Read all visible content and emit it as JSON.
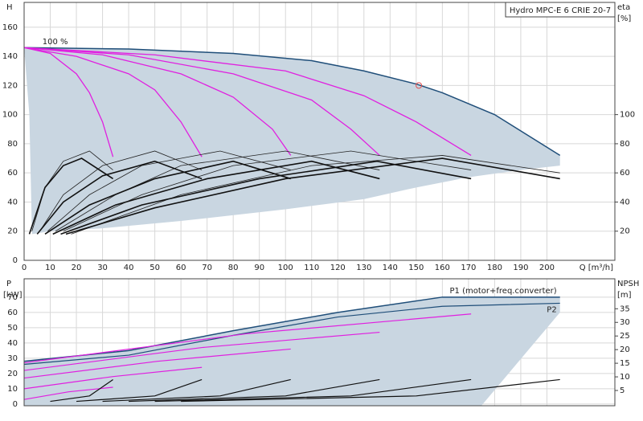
{
  "chart_data": [
    {
      "type": "line",
      "y_label": "H",
      "x_label": "Q [m³/h]",
      "y2_label": "eta",
      "y2_unit": "[%]",
      "model": "Hydro MPC-E 6 CRIE 20-7",
      "annotation": {
        "text": "100 %",
        "x": 7,
        "y": 150
      },
      "xlim": [
        0,
        226
      ],
      "ylim": [
        0,
        177
      ],
      "y2lim": [
        0,
        177
      ],
      "xticks": [
        0,
        10,
        20,
        30,
        40,
        50,
        60,
        70,
        80,
        90,
        100,
        110,
        120,
        130,
        140,
        150,
        160,
        170,
        180,
        190,
        200
      ],
      "yticks": [
        0,
        20,
        40,
        60,
        80,
        100,
        120,
        140,
        160
      ],
      "y2ticks": [
        20,
        40,
        60,
        80,
        100
      ],
      "grid": true,
      "operating_point": {
        "x": 151,
        "y": 120,
        "color": "#e05050"
      },
      "series": [
        {
          "fill": "#c9d6e1",
          "x": [
            0,
            40,
            80,
            110,
            130,
            150,
            160,
            180,
            205,
            205,
            190,
            170,
            150,
            130,
            100,
            60,
            30,
            10,
            3,
            2
          ],
          "values": [
            146,
            145,
            142,
            137,
            130,
            121,
            115,
            100,
            72,
            65,
            62,
            57,
            50,
            42,
            35,
            27,
            22,
            20,
            18,
            100
          ]
        },
        {
          "color": "#1f4e79",
          "width": 1.5,
          "x": [
            0,
            40,
            80,
            110,
            130,
            150,
            160,
            180,
            205
          ],
          "values": [
            146,
            145,
            142,
            137,
            130,
            121,
            115,
            100,
            72
          ]
        },
        {
          "color": "#e020e0",
          "width": 1.3,
          "x": [
            0,
            10,
            20,
            25,
            30,
            34
          ],
          "values": [
            146,
            142,
            128,
            115,
            95,
            71
          ]
        },
        {
          "color": "#e020e0",
          "width": 1.3,
          "x": [
            0,
            20,
            40,
            50,
            60,
            68
          ],
          "values": [
            146,
            140,
            128,
            117,
            95,
            71
          ]
        },
        {
          "color": "#e020e0",
          "width": 1.3,
          "x": [
            0,
            30,
            60,
            80,
            95,
            102
          ],
          "values": [
            146,
            141,
            128,
            112,
            90,
            72
          ]
        },
        {
          "color": "#e020e0",
          "width": 1.3,
          "x": [
            0,
            40,
            80,
            110,
            125,
            136
          ],
          "values": [
            146,
            141,
            128,
            110,
            90,
            72
          ]
        },
        {
          "color": "#e020e0",
          "width": 1.3,
          "x": [
            0,
            50,
            100,
            130,
            150,
            171
          ],
          "values": [
            146,
            141,
            130,
            113,
            95,
            72
          ]
        },
        {
          "color": "#222",
          "width": 0.8,
          "axis": "y2",
          "x": [
            3,
            8,
            15,
            25,
            34
          ],
          "values": [
            20,
            50,
            68,
            75,
            62
          ]
        },
        {
          "color": "#222",
          "width": 0.8,
          "axis": "y2",
          "x": [
            6,
            15,
            30,
            50,
            68
          ],
          "values": [
            20,
            45,
            65,
            75,
            62
          ]
        },
        {
          "color": "#222",
          "width": 0.8,
          "axis": "y2",
          "x": [
            9,
            25,
            45,
            75,
            102
          ],
          "values": [
            20,
            45,
            65,
            75,
            62
          ]
        },
        {
          "color": "#222",
          "width": 0.8,
          "axis": "y2",
          "x": [
            12,
            35,
            60,
            100,
            136
          ],
          "values": [
            20,
            45,
            65,
            75,
            62
          ]
        },
        {
          "color": "#222",
          "width": 0.8,
          "axis": "y2",
          "x": [
            15,
            45,
            80,
            125,
            171
          ],
          "values": [
            20,
            45,
            65,
            75,
            62
          ]
        },
        {
          "color": "#222",
          "width": 0.8,
          "axis": "y2",
          "x": [
            18,
            60,
            110,
            160,
            205
          ],
          "values": [
            18,
            45,
            65,
            72,
            60
          ]
        },
        {
          "color": "#111",
          "width": 1.6,
          "axis": "y2",
          "x": [
            2,
            8,
            15,
            22,
            34
          ],
          "values": [
            18,
            50,
            65,
            70,
            56
          ]
        },
        {
          "color": "#111",
          "width": 1.6,
          "axis": "y2",
          "x": [
            5,
            15,
            30,
            50,
            68
          ],
          "values": [
            18,
            40,
            58,
            68,
            56
          ]
        },
        {
          "color": "#111",
          "width": 1.6,
          "axis": "y2",
          "x": [
            8,
            25,
            50,
            80,
            102
          ],
          "values": [
            18,
            38,
            56,
            68,
            56
          ]
        },
        {
          "color": "#111",
          "width": 1.6,
          "axis": "y2",
          "x": [
            11,
            35,
            70,
            110,
            136
          ],
          "values": [
            18,
            38,
            56,
            68,
            56
          ]
        },
        {
          "color": "#111",
          "width": 1.6,
          "axis": "y2",
          "x": [
            14,
            45,
            90,
            135,
            171
          ],
          "values": [
            18,
            38,
            56,
            68,
            56
          ]
        },
        {
          "color": "#111",
          "width": 1.6,
          "axis": "y2",
          "x": [
            16,
            50,
            100,
            160,
            205
          ],
          "values": [
            18,
            36,
            56,
            70,
            56
          ]
        }
      ]
    },
    {
      "type": "line",
      "y_label": "P",
      "y_unit": "[kW]",
      "y2_label": "NPSH",
      "y2_unit": "[m]",
      "xlim": [
        0,
        226
      ],
      "ylim": [
        -1.1,
        82
      ],
      "y2lim": [
        -0.6,
        46
      ],
      "xticks": [
        0,
        10,
        20,
        30,
        40,
        50,
        60,
        70,
        80,
        90,
        100,
        110,
        120,
        130,
        140,
        150,
        160,
        170,
        180,
        190,
        200
      ],
      "xtick_labels": false,
      "yticks": [
        0,
        10,
        20,
        30,
        40,
        50,
        60,
        70
      ],
      "y2ticks": [
        5,
        10,
        15,
        20,
        25,
        30,
        35
      ],
      "grid": true,
      "series": [
        {
          "fill": "#c9d6e1",
          "x": [
            0,
            40,
            80,
            120,
            160,
            205,
            205,
            175,
            0
          ],
          "values": [
            28,
            35,
            48,
            60,
            70,
            70,
            60,
            -1,
            -1
          ]
        },
        {
          "name": "P1 (motor+freq.converter)",
          "color": "#1f4e79",
          "width": 1.5,
          "x": [
            0,
            40,
            80,
            120,
            160,
            205
          ],
          "values": [
            28,
            35,
            48,
            60,
            70,
            70
          ]
        },
        {
          "name": "P2",
          "color": "#1f4e79",
          "width": 1.2,
          "x": [
            0,
            40,
            80,
            120,
            160,
            205
          ],
          "values": [
            26,
            32,
            45,
            57,
            64,
            66
          ]
        },
        {
          "color": "#e020e0",
          "width": 1.2,
          "x": [
            0,
            17,
            34
          ],
          "values": [
            3,
            8,
            11
          ]
        },
        {
          "color": "#e020e0",
          "width": 1.2,
          "x": [
            0,
            34,
            68
          ],
          "values": [
            10,
            18,
            24
          ]
        },
        {
          "color": "#e020e0",
          "width": 1.2,
          "x": [
            0,
            51,
            102
          ],
          "values": [
            17,
            28,
            36
          ]
        },
        {
          "color": "#e020e0",
          "width": 1.2,
          "x": [
            0,
            68,
            136
          ],
          "values": [
            22,
            37,
            47
          ]
        },
        {
          "color": "#e020e0",
          "width": 1.2,
          "x": [
            0,
            85,
            171
          ],
          "values": [
            27,
            46,
            59
          ]
        },
        {
          "color": "#111",
          "width": 1.2,
          "axis": "y2",
          "x": [
            10,
            25,
            34
          ],
          "values": [
            1,
            3,
            9
          ]
        },
        {
          "color": "#111",
          "width": 1.2,
          "axis": "y2",
          "x": [
            20,
            50,
            68
          ],
          "values": [
            1,
            3,
            9
          ]
        },
        {
          "color": "#111",
          "width": 1.2,
          "axis": "y2",
          "x": [
            30,
            75,
            102
          ],
          "values": [
            1,
            3,
            9
          ]
        },
        {
          "color": "#111",
          "width": 1.2,
          "axis": "y2",
          "x": [
            40,
            100,
            136
          ],
          "values": [
            1,
            3,
            9
          ]
        },
        {
          "color": "#111",
          "width": 1.2,
          "axis": "y2",
          "x": [
            50,
            125,
            171
          ],
          "values": [
            1,
            3,
            9
          ]
        },
        {
          "color": "#111",
          "width": 1.2,
          "axis": "y2",
          "x": [
            60,
            150,
            205
          ],
          "values": [
            1,
            3,
            9
          ]
        }
      ]
    }
  ]
}
